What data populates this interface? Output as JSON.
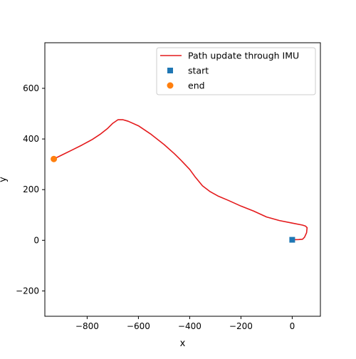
{
  "chart_data": {
    "type": "line",
    "title": "",
    "xlabel": "x",
    "ylabel": "y",
    "xlim": [
      -965,
      110
    ],
    "ylim": [
      -300,
      780
    ],
    "x_ticks": [
      {
        "value": -800,
        "label": "−800"
      },
      {
        "value": -600,
        "label": "−600"
      },
      {
        "value": -400,
        "label": "−400"
      },
      {
        "value": -200,
        "label": "−200"
      },
      {
        "value": 0,
        "label": "0"
      }
    ],
    "y_ticks": [
      {
        "value": -200,
        "label": "−200"
      },
      {
        "value": 0,
        "label": "0"
      },
      {
        "value": 200,
        "label": "200"
      },
      {
        "value": 400,
        "label": "400"
      },
      {
        "value": 600,
        "label": "600"
      }
    ],
    "grid": false,
    "legend_position": "upper right",
    "series": [
      {
        "name": "Path update through IMU",
        "kind": "line",
        "color": "#e41a1c",
        "points": [
          [
            0,
            2
          ],
          [
            25,
            3
          ],
          [
            40,
            4
          ],
          [
            48,
            12
          ],
          [
            56,
            30
          ],
          [
            58,
            50
          ],
          [
            52,
            56
          ],
          [
            40,
            60
          ],
          [
            0,
            68
          ],
          [
            -50,
            78
          ],
          [
            -100,
            92
          ],
          [
            -150,
            115
          ],
          [
            -200,
            135
          ],
          [
            -250,
            158
          ],
          [
            -290,
            175
          ],
          [
            -320,
            192
          ],
          [
            -350,
            215
          ],
          [
            -380,
            252
          ],
          [
            -400,
            280
          ],
          [
            -430,
            312
          ],
          [
            -460,
            342
          ],
          [
            -500,
            378
          ],
          [
            -550,
            418
          ],
          [
            -600,
            452
          ],
          [
            -640,
            470
          ],
          [
            -660,
            476
          ],
          [
            -680,
            476
          ],
          [
            -700,
            462
          ],
          [
            -720,
            442
          ],
          [
            -750,
            418
          ],
          [
            -780,
            398
          ],
          [
            -820,
            376
          ],
          [
            -860,
            356
          ],
          [
            -900,
            336
          ],
          [
            -930,
            321
          ]
        ]
      },
      {
        "name": "start",
        "kind": "scatter",
        "marker": "square",
        "color": "#1f77b4",
        "points": [
          [
            0,
            2
          ]
        ]
      },
      {
        "name": "end",
        "kind": "scatter",
        "marker": "circle",
        "color": "#ff7f0e",
        "points": [
          [
            -930,
            321
          ]
        ]
      }
    ]
  }
}
